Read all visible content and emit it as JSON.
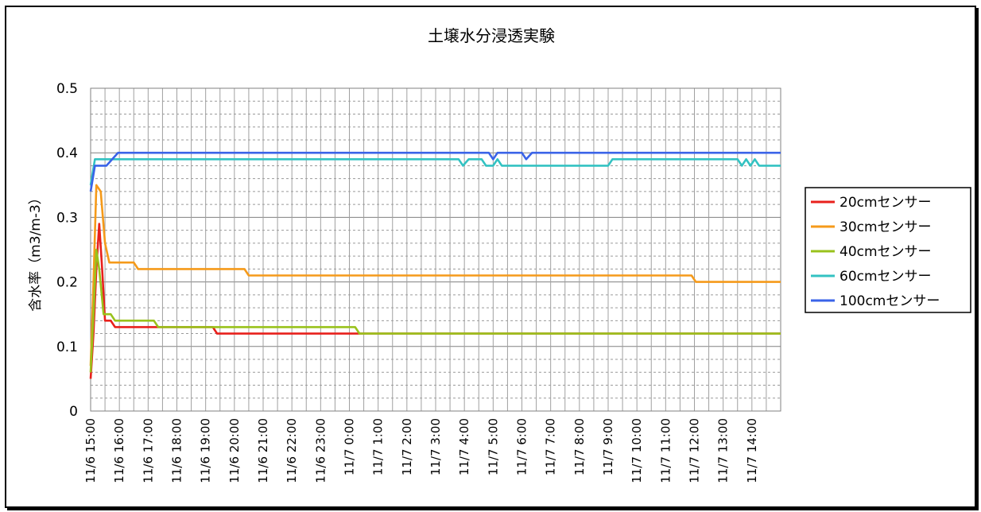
{
  "chart_data": {
    "type": "line",
    "title": "土壌水分浸透実験",
    "ylabel": "含水率（m3/m-3）",
    "xlabel": "",
    "ylim": [
      0,
      0.5
    ],
    "yticks": [
      0,
      0.1,
      0.2,
      0.3,
      0.4,
      0.5
    ],
    "ytick_labels": [
      "0",
      "0.1",
      "0.2",
      "0.3",
      "0.4",
      "0.5"
    ],
    "grid": true,
    "legend_position": "right",
    "x_categories": [
      "11/6 15:00",
      "11/6 16:00",
      "11/6 17:00",
      "11/6 18:00",
      "11/6 19:00",
      "11/6 20:00",
      "11/6 21:00",
      "11/6 22:00",
      "11/6 23:00",
      "11/7 0:00",
      "11/7 1:00",
      "11/7 2:00",
      "11/7 3:00",
      "11/7 4:00",
      "11/7 5:00",
      "11/7 6:00",
      "11/7 7:00",
      "11/7 8:00",
      "11/7 9:00",
      "11/7 10:00",
      "11/7 11:00",
      "11/7 12:00",
      "11/7 13:00",
      "11/7 14:00"
    ],
    "series": [
      {
        "name": "20cmセンサー",
        "color": "#e8201c",
        "points": [
          [
            0,
            0.05
          ],
          [
            0.1,
            0.12
          ],
          [
            0.2,
            0.22
          ],
          [
            0.3,
            0.29
          ],
          [
            0.4,
            0.22
          ],
          [
            0.5,
            0.14
          ],
          [
            0.7,
            0.14
          ],
          [
            0.85,
            0.13
          ],
          [
            2,
            0.13
          ],
          [
            4.25,
            0.13
          ],
          [
            4.4,
            0.12
          ],
          [
            9.3,
            0.12
          ],
          [
            24.0,
            0.12
          ]
        ]
      },
      {
        "name": "30cmセンサー",
        "color": "#f59a1a",
        "points": [
          [
            0,
            0.07
          ],
          [
            0.1,
            0.2
          ],
          [
            0.2,
            0.35
          ],
          [
            0.35,
            0.34
          ],
          [
            0.5,
            0.26
          ],
          [
            0.65,
            0.23
          ],
          [
            1.5,
            0.23
          ],
          [
            1.65,
            0.22
          ],
          [
            5.35,
            0.22
          ],
          [
            5.5,
            0.21
          ],
          [
            20.9,
            0.21
          ],
          [
            21.05,
            0.2
          ],
          [
            24.0,
            0.2
          ]
        ]
      },
      {
        "name": "40cmセンサー",
        "color": "#99c21c",
        "points": [
          [
            0,
            0.06
          ],
          [
            0.1,
            0.15
          ],
          [
            0.2,
            0.25
          ],
          [
            0.3,
            0.22
          ],
          [
            0.45,
            0.15
          ],
          [
            0.7,
            0.15
          ],
          [
            0.85,
            0.14
          ],
          [
            2.2,
            0.14
          ],
          [
            2.35,
            0.13
          ],
          [
            9.2,
            0.13
          ],
          [
            9.35,
            0.12
          ],
          [
            24.0,
            0.12
          ]
        ]
      },
      {
        "name": "60cmセンサー",
        "color": "#33c2c2",
        "points": [
          [
            0,
            0.35
          ],
          [
            0.15,
            0.39
          ],
          [
            12.8,
            0.39
          ],
          [
            12.95,
            0.38
          ],
          [
            13.15,
            0.39
          ],
          [
            13.6,
            0.39
          ],
          [
            13.75,
            0.38
          ],
          [
            14.0,
            0.38
          ],
          [
            14.15,
            0.39
          ],
          [
            14.3,
            0.38
          ],
          [
            18.0,
            0.38
          ],
          [
            18.15,
            0.39
          ],
          [
            22.5,
            0.39
          ],
          [
            22.65,
            0.38
          ],
          [
            22.8,
            0.39
          ],
          [
            22.95,
            0.38
          ],
          [
            23.1,
            0.39
          ],
          [
            23.25,
            0.38
          ],
          [
            24.0,
            0.38
          ]
        ]
      },
      {
        "name": "100cmセンサー",
        "color": "#3a63e8",
        "points": [
          [
            0,
            0.34
          ],
          [
            0.15,
            0.38
          ],
          [
            0.55,
            0.38
          ],
          [
            0.95,
            0.4
          ],
          [
            13.85,
            0.4
          ],
          [
            14.0,
            0.39
          ],
          [
            14.15,
            0.4
          ],
          [
            15.0,
            0.4
          ],
          [
            15.15,
            0.39
          ],
          [
            15.35,
            0.4
          ],
          [
            24.0,
            0.4
          ]
        ]
      }
    ]
  }
}
